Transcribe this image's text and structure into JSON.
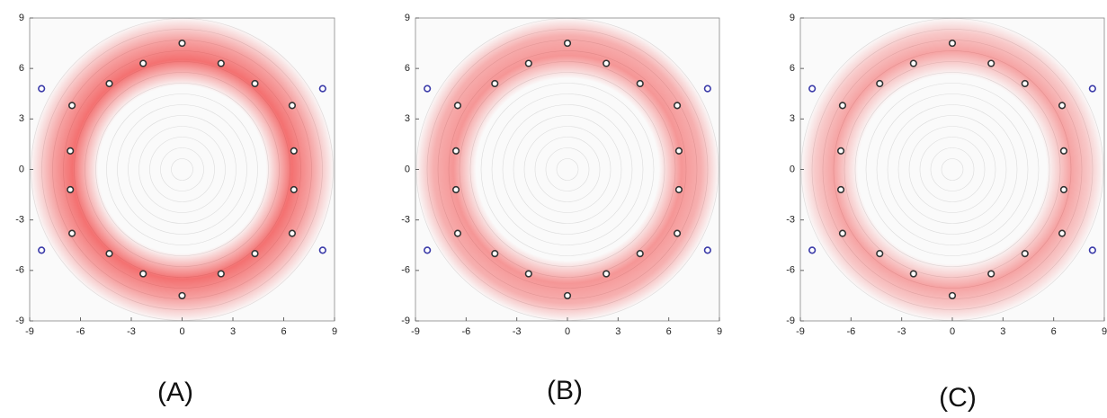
{
  "chart_data": [
    {
      "type": "scatter",
      "caption": "(A)",
      "xlim": [
        -9,
        9
      ],
      "ylim": [
        -9,
        9
      ],
      "xticks": [
        -9,
        -6,
        -3,
        0,
        3,
        6,
        9
      ],
      "yticks": [
        -9,
        -6,
        -3,
        0,
        3,
        6,
        9
      ],
      "series": [
        {
          "color": "#333333",
          "x": [
            0,
            2.3,
            4.3,
            6.5,
            6.6,
            6.6,
            6.5,
            4.3,
            2.3,
            0,
            -2.3,
            -4.3,
            -6.5,
            -6.6,
            -6.6,
            -6.5,
            -4.3,
            -2.3
          ],
          "values": [
            7.5,
            6.3,
            5.1,
            3.8,
            1.1,
            -1.2,
            -3.8,
            -5.0,
            -6.2,
            -7.5,
            -6.2,
            -5.0,
            -3.8,
            -1.2,
            1.1,
            3.8,
            5.1,
            6.3
          ]
        },
        {
          "color": "#3a3aa8",
          "x": [
            8.3,
            8.3,
            -8.3,
            -8.3
          ],
          "values": [
            4.8,
            -4.8,
            -4.8,
            4.8
          ]
        }
      ]
    },
    {
      "type": "scatter",
      "caption": "(B)",
      "xlim": [
        -9,
        9
      ],
      "ylim": [
        -9,
        9
      ],
      "xticks": [
        -9,
        -6,
        -3,
        0,
        3,
        6,
        9
      ],
      "yticks": [
        -9,
        -6,
        -3,
        0,
        3,
        6,
        9
      ],
      "series": [
        {
          "color": "#333333",
          "x": [
            0,
            2.3,
            4.3,
            6.5,
            6.6,
            6.6,
            6.5,
            4.3,
            2.3,
            0,
            -2.3,
            -4.3,
            -6.5,
            -6.6,
            -6.6,
            -6.5,
            -4.3,
            -2.3
          ],
          "values": [
            7.5,
            6.3,
            5.1,
            3.8,
            1.1,
            -1.2,
            -3.8,
            -5.0,
            -6.2,
            -7.5,
            -6.2,
            -5.0,
            -3.8,
            -1.2,
            1.1,
            3.8,
            5.1,
            6.3
          ]
        },
        {
          "color": "#3a3aa8",
          "x": [
            8.3,
            8.3,
            -8.3,
            -8.3
          ],
          "values": [
            4.8,
            -4.8,
            -4.8,
            4.8
          ]
        }
      ]
    },
    {
      "type": "scatter",
      "caption": "(C)",
      "xlim": [
        -9,
        9
      ],
      "ylim": [
        -9,
        9
      ],
      "xticks": [
        -9,
        -6,
        -3,
        0,
        3,
        6,
        9
      ],
      "yticks": [
        -9,
        -6,
        -3,
        0,
        3,
        6,
        9
      ],
      "series": [
        {
          "color": "#333333",
          "x": [
            0,
            2.3,
            4.3,
            6.5,
            6.6,
            6.6,
            6.5,
            4.3,
            2.3,
            0,
            -2.3,
            -4.3,
            -6.5,
            -6.6,
            -6.6,
            -6.5,
            -4.3,
            -2.3
          ],
          "values": [
            7.5,
            6.3,
            5.1,
            3.8,
            1.1,
            -1.2,
            -3.8,
            -5.0,
            -6.2,
            -7.5,
            -6.2,
            -5.0,
            -3.8,
            -1.2,
            1.1,
            3.8,
            5.1,
            6.3
          ]
        },
        {
          "color": "#3a3aa8",
          "x": [
            8.3,
            8.3,
            -8.3,
            -8.3
          ],
          "values": [
            4.8,
            -4.8,
            -4.8,
            4.8
          ]
        }
      ]
    }
  ]
}
